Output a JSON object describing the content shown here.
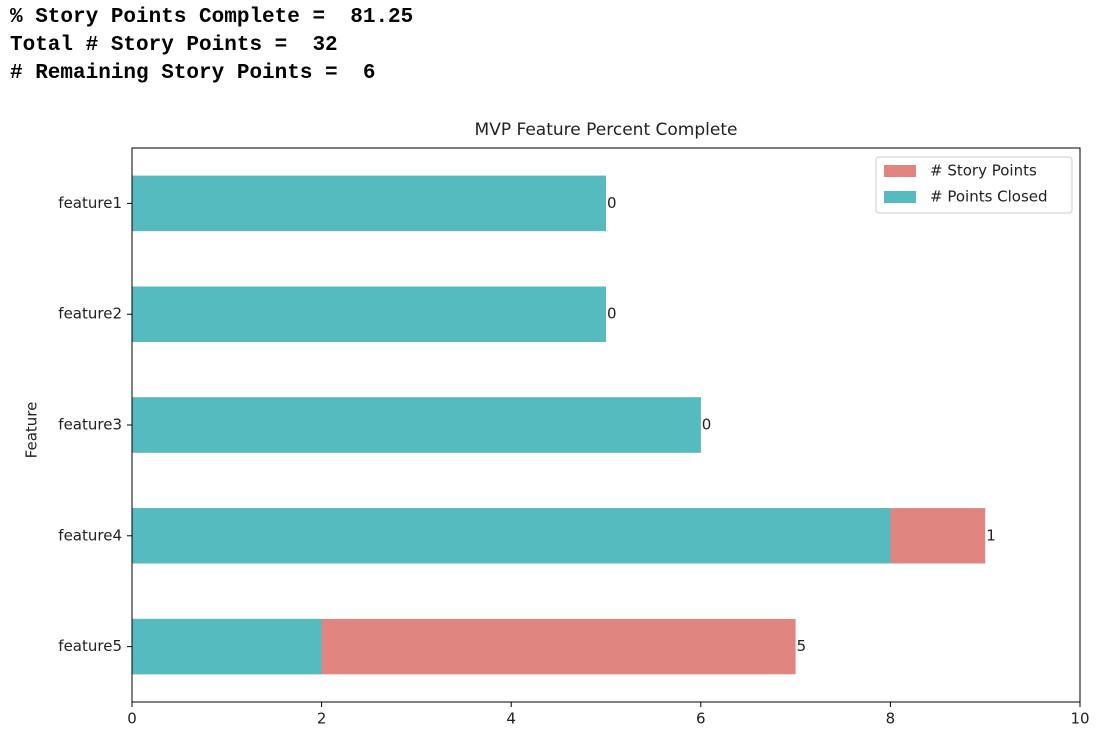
{
  "output": [
    "% Story Points Complete =  81.25",
    "Total # Story Points =  32",
    "# Remaining Story Points =  6"
  ],
  "chart_data": {
    "type": "barh",
    "title": "MVP Feature Percent Complete",
    "y_label": "Feature",
    "categories": [
      "feature1",
      "feature2",
      "feature3",
      "feature4",
      "feature5"
    ],
    "series": [
      {
        "name": "# Story Points",
        "color": "#e0857f",
        "values": [
          5,
          5,
          6,
          9,
          7
        ]
      },
      {
        "name": "# Points Closed",
        "color": "#55bbbf",
        "values": [
          5,
          5,
          6,
          8,
          2
        ]
      }
    ],
    "annotations": [
      0,
      0,
      0,
      1,
      5
    ],
    "xlim": [
      0,
      10
    ],
    "xticks": [
      0,
      2,
      4,
      6,
      8,
      10
    ],
    "legend": "upper right"
  }
}
